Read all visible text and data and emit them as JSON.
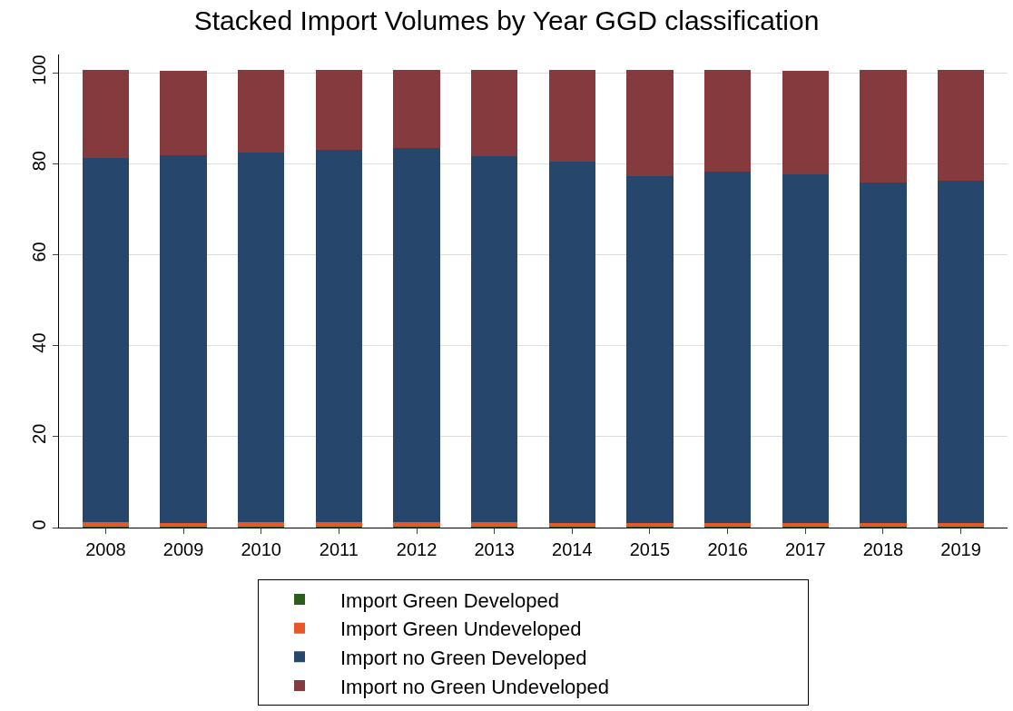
{
  "chart_data": {
    "type": "bar",
    "title": "Stacked Import Volumes by Year GGD classification",
    "stacked": true,
    "categories": [
      "2008",
      "2009",
      "2010",
      "2011",
      "2012",
      "2013",
      "2014",
      "2015",
      "2016",
      "2017",
      "2018",
      "2019"
    ],
    "series": [
      {
        "name": "Import Green Developed",
        "color": "#2b5e1b",
        "values": [
          0.2,
          0.2,
          0.2,
          0.2,
          0.2,
          0.2,
          0.2,
          0.2,
          0.2,
          0.2,
          0.2,
          0.2
        ]
      },
      {
        "name": "Import Green Undeveloped",
        "color": "#e8562a",
        "values": [
          1.0,
          0.8,
          1.0,
          1.0,
          0.9,
          0.9,
          0.8,
          0.8,
          0.8,
          0.7,
          0.8,
          0.7
        ]
      },
      {
        "name": "Import no Green Developed",
        "color": "#26476b",
        "values": [
          80.0,
          80.9,
          81.3,
          81.8,
          82.3,
          80.6,
          79.4,
          76.3,
          77.2,
          76.8,
          74.8,
          75.3
        ]
      },
      {
        "name": "Import no Green Undeveloped",
        "color": "#853a3e",
        "values": [
          19.4,
          18.6,
          18.2,
          17.7,
          17.3,
          19.0,
          20.2,
          23.3,
          22.4,
          22.8,
          24.8,
          24.4
        ]
      }
    ],
    "ylim": [
      0,
      104
    ],
    "yticks": [
      0,
      20,
      40,
      60,
      80,
      100
    ],
    "grid": "y",
    "legend": "bottom"
  }
}
